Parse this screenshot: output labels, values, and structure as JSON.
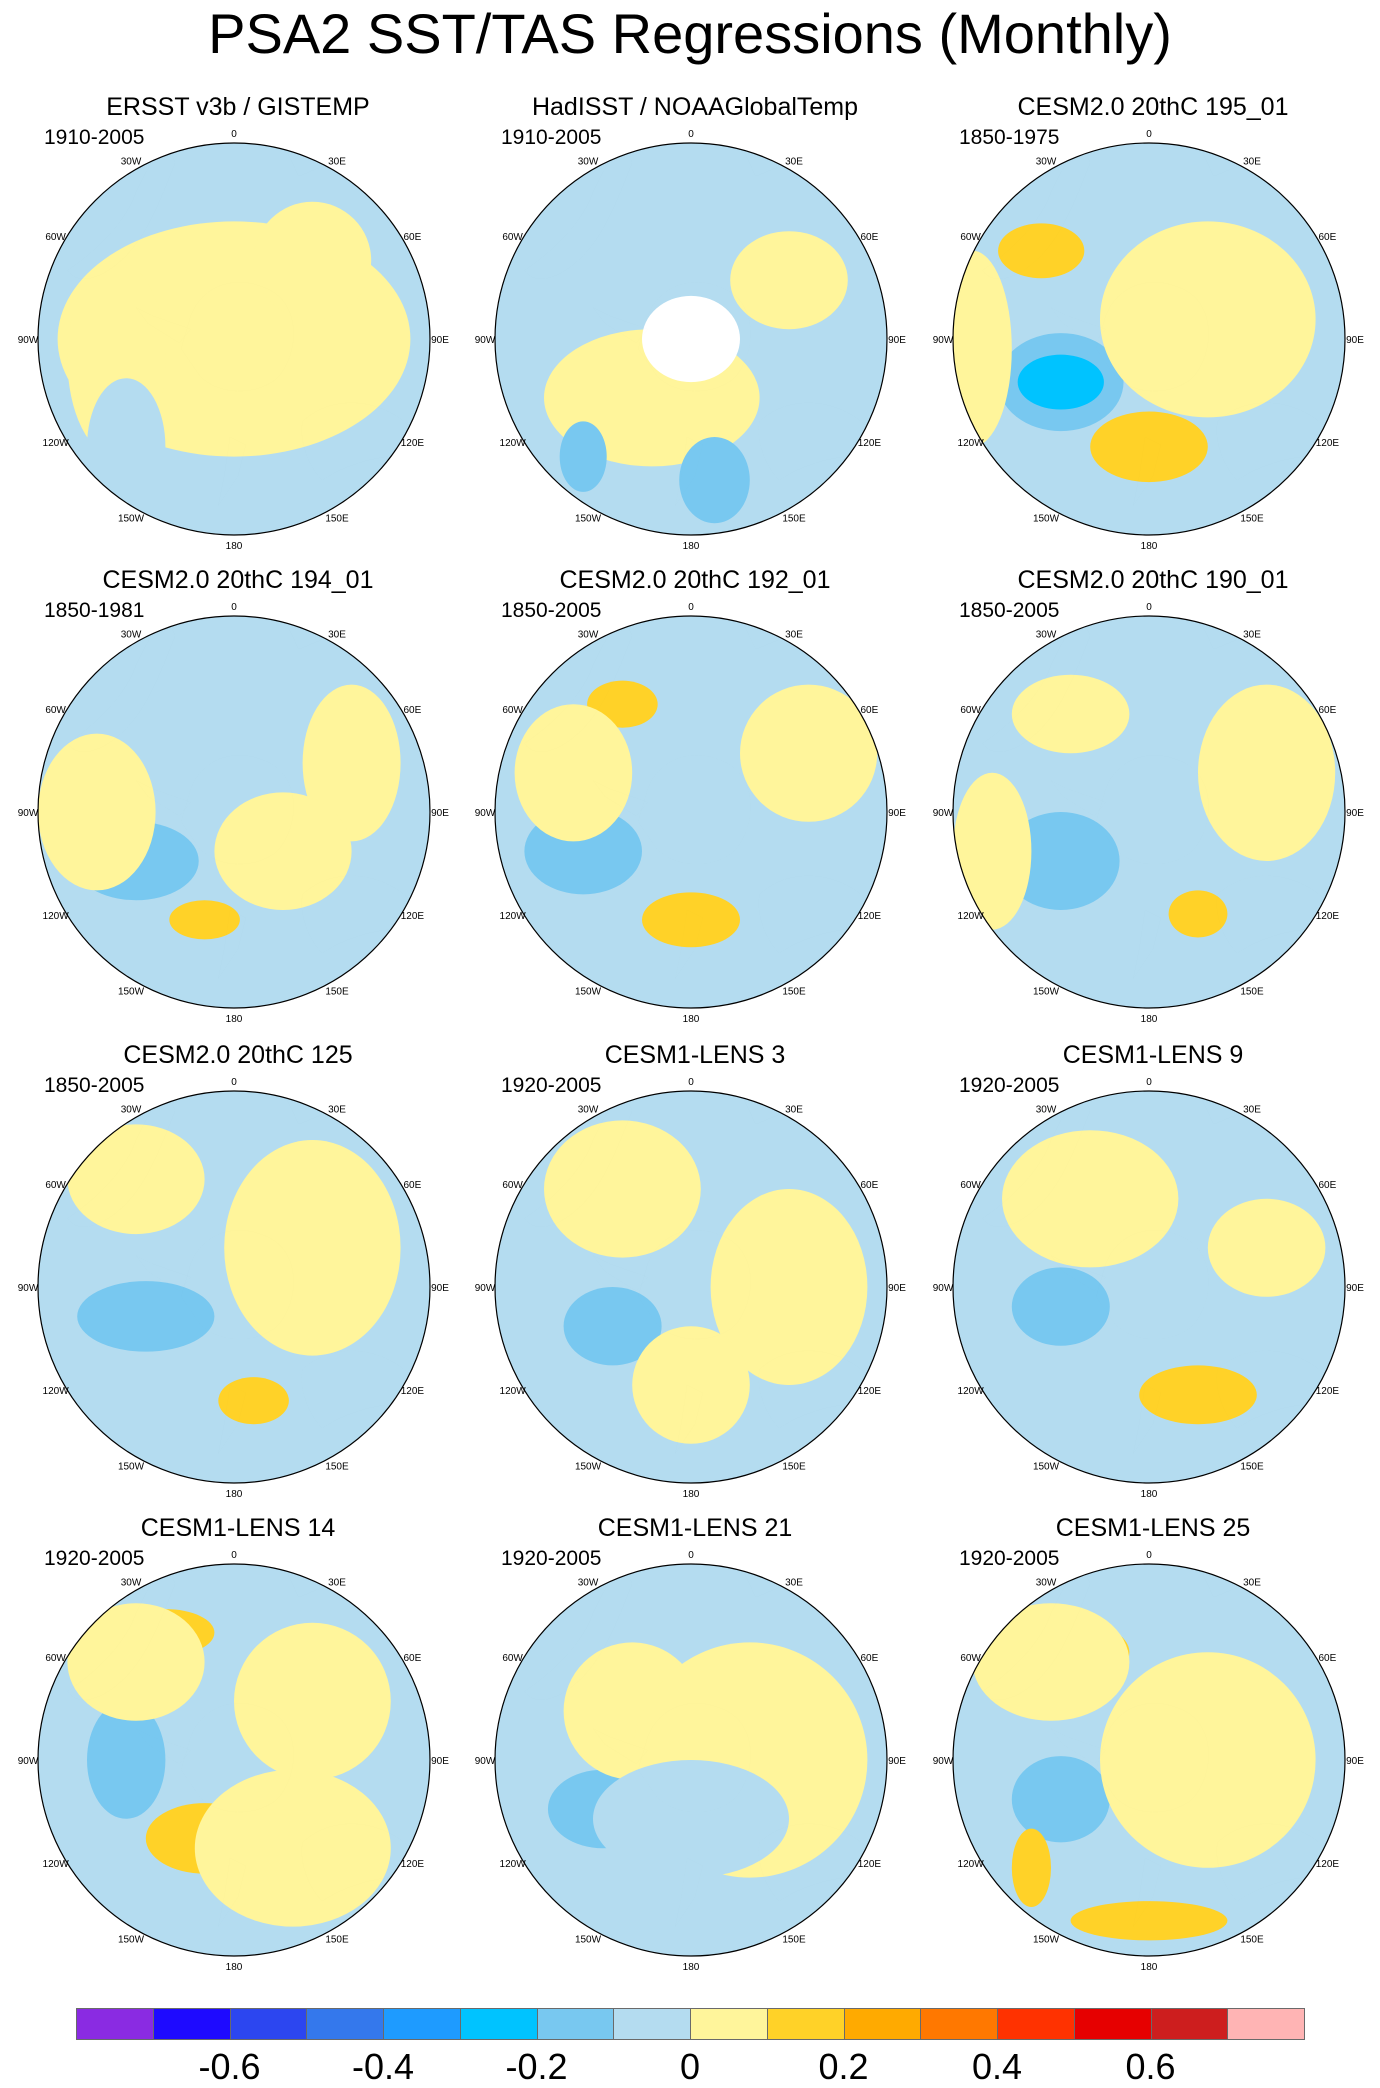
{
  "figure": {
    "title": "PSA2 SST/TAS Regressions (Monthly)"
  },
  "colors": {
    "ocean_neutral_negative": "#b4dcf0",
    "ocean_neutral_positive": "#fff59b",
    "missing": "#ffffff",
    "coast": "#333333"
  },
  "longitude_labels": [
    "0",
    "30E",
    "60E",
    "90E",
    "120E",
    "150E",
    "180",
    "150W",
    "120W",
    "90W",
    "60W",
    "30W"
  ],
  "colorbar": {
    "colors": [
      "#8a2be2",
      "#1e0aff",
      "#2c46f0",
      "#3478ec",
      "#1e9bff",
      "#00c3ff",
      "#78c8f0",
      "#b4dcf0",
      "#fff59b",
      "#ffd228",
      "#ffaa00",
      "#ff7800",
      "#ff3200",
      "#e60000",
      "#cd1e1e",
      "#ffb4b4"
    ],
    "labels": [
      {
        "text": "-0.6",
        "boundary": 2
      },
      {
        "text": "-0.4",
        "boundary": 4
      },
      {
        "text": "-0.2",
        "boundary": 6
      },
      {
        "text": "0",
        "boundary": 8
      },
      {
        "text": "0.2",
        "boundary": 10
      },
      {
        "text": "0.4",
        "boundary": 12
      },
      {
        "text": "0.6",
        "boundary": 14
      }
    ]
  },
  "panels": [
    {
      "title": "ERSST v3b / GISTEMP",
      "period": "1910-2005"
    },
    {
      "title": "HadISST / NOAAGlobalTemp",
      "period": "1910-2005"
    },
    {
      "title": "CESM2.0 20thC 195_01",
      "period": "1850-1975"
    },
    {
      "title": "CESM2.0 20thC 194_01",
      "period": "1850-1981"
    },
    {
      "title": "CESM2.0 20thC 192_01",
      "period": "1850-2005"
    },
    {
      "title": "CESM2.0 20thC 190_01",
      "period": "1850-2005"
    },
    {
      "title": "CESM2.0 20thC 125",
      "period": "1850-2005"
    },
    {
      "title": "CESM1-LENS 3",
      "period": "1920-2005"
    },
    {
      "title": "CESM1-LENS 9",
      "period": "1920-2005"
    },
    {
      "title": "CESM1-LENS 14",
      "period": "1920-2005"
    },
    {
      "title": "CESM1-LENS 21",
      "period": "1920-2005"
    },
    {
      "title": "CESM1-LENS 25",
      "period": "1920-2005"
    }
  ]
}
